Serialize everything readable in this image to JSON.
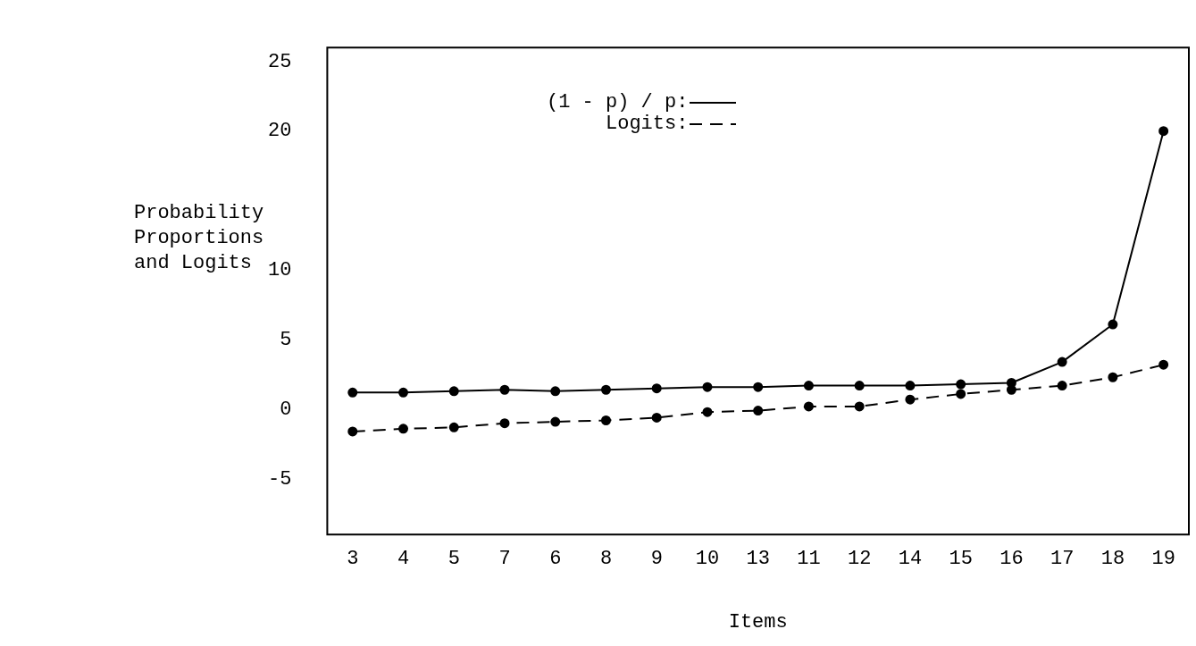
{
  "chart_data": {
    "type": "line",
    "xlabel": "Items",
    "ylabel": "Probability\nProportions\nand Logits",
    "categories": [
      "3",
      "4",
      "5",
      "7",
      "6",
      "8",
      "9",
      "10",
      "13",
      "11",
      "12",
      "14",
      "15",
      "16",
      "17",
      "18",
      "19"
    ],
    "series": [
      {
        "name": "(1 - p) / p:",
        "color": "#000000",
        "line_style": "solid",
        "values": [
          1.2,
          1.2,
          1.3,
          1.4,
          1.3,
          1.4,
          1.5,
          1.6,
          1.6,
          1.7,
          1.7,
          1.7,
          1.8,
          1.9,
          3.4,
          6.1,
          20
        ]
      },
      {
        "name": "Logits:",
        "color": "#000000",
        "line_style": "dashed",
        "values": [
          -1.6,
          -1.4,
          -1.3,
          -1.0,
          -0.9,
          -0.8,
          -0.6,
          -0.2,
          -0.1,
          0.2,
          0.2,
          0.7,
          1.1,
          1.4,
          1.7,
          2.3,
          3.2
        ]
      }
    ],
    "ylim": [
      -9,
      26
    ],
    "yticks": [
      -5,
      0,
      5,
      10,
      20,
      25
    ],
    "grid": false,
    "legend": "top",
    "marker": "circle"
  }
}
